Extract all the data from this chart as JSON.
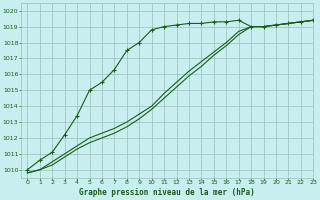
{
  "title": "Graphe pression niveau de la mer (hPa)",
  "bg_color": "#c8eef0",
  "grid_color": "#9bbfb8",
  "line_color": "#1a5c1a",
  "xlim": [
    -0.5,
    23
  ],
  "ylim": [
    1009.5,
    1020.5
  ],
  "yticks": [
    1010,
    1011,
    1012,
    1013,
    1014,
    1015,
    1016,
    1017,
    1018,
    1019,
    1020
  ],
  "xticks": [
    0,
    1,
    2,
    3,
    4,
    5,
    6,
    7,
    8,
    9,
    10,
    11,
    12,
    13,
    14,
    15,
    16,
    17,
    18,
    19,
    20,
    21,
    22,
    23
  ],
  "line1_x": [
    0,
    1,
    2,
    3,
    4,
    5,
    6,
    7,
    8,
    9,
    10,
    11,
    12,
    13,
    14,
    15,
    16,
    17,
    18,
    19,
    20,
    21,
    22,
    23
  ],
  "line1_y": [
    1010.0,
    1010.6,
    1011.1,
    1012.2,
    1013.4,
    1015.0,
    1015.5,
    1016.3,
    1017.5,
    1018.0,
    1018.8,
    1019.0,
    1019.1,
    1019.2,
    1019.2,
    1019.3,
    1019.3,
    1019.4,
    1019.0,
    1019.0,
    1019.1,
    1019.2,
    1019.3,
    1019.4
  ],
  "line2_x": [
    0,
    1,
    2,
    3,
    4,
    5,
    6,
    7,
    8,
    9,
    10,
    11,
    12,
    13,
    14,
    15,
    16,
    17,
    18,
    19,
    20,
    21,
    22,
    23
  ],
  "line2_y": [
    1009.8,
    1010.0,
    1010.5,
    1011.0,
    1011.5,
    1012.0,
    1012.3,
    1012.6,
    1013.0,
    1013.5,
    1014.0,
    1014.8,
    1015.5,
    1016.2,
    1016.8,
    1017.4,
    1018.0,
    1018.7,
    1019.0,
    1019.0,
    1019.1,
    1019.2,
    1019.3,
    1019.4
  ],
  "line3_x": [
    0,
    1,
    2,
    3,
    4,
    5,
    6,
    7,
    8,
    9,
    10,
    11,
    12,
    13,
    14,
    15,
    16,
    17,
    18,
    19,
    20,
    21,
    22,
    23
  ],
  "line3_y": [
    1009.8,
    1010.0,
    1010.3,
    1010.8,
    1011.3,
    1011.7,
    1012.0,
    1012.3,
    1012.7,
    1013.2,
    1013.8,
    1014.5,
    1015.2,
    1015.9,
    1016.5,
    1017.2,
    1017.8,
    1018.5,
    1019.0,
    1019.0,
    1019.1,
    1019.2,
    1019.3,
    1019.4
  ]
}
